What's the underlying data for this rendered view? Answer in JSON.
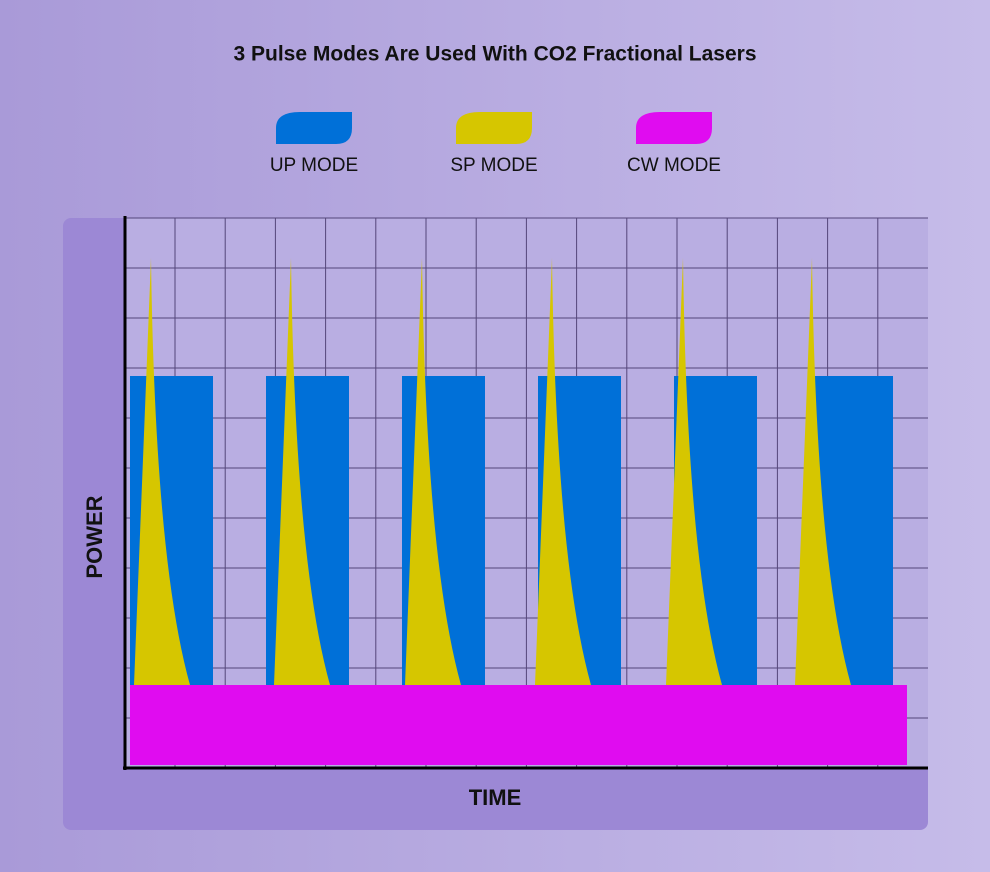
{
  "title": "3 Pulse Modes Are Used With CO2 Fractional Lasers",
  "legend": [
    {
      "label": "UP MODE",
      "color": "#0070d8"
    },
    {
      "label": "SP MODE",
      "color": "#d6c600"
    },
    {
      "label": "CW MODE",
      "color": "#e00cf0"
    }
  ],
  "axes": {
    "y_label": "POWER",
    "x_label": "TIME"
  }
}
